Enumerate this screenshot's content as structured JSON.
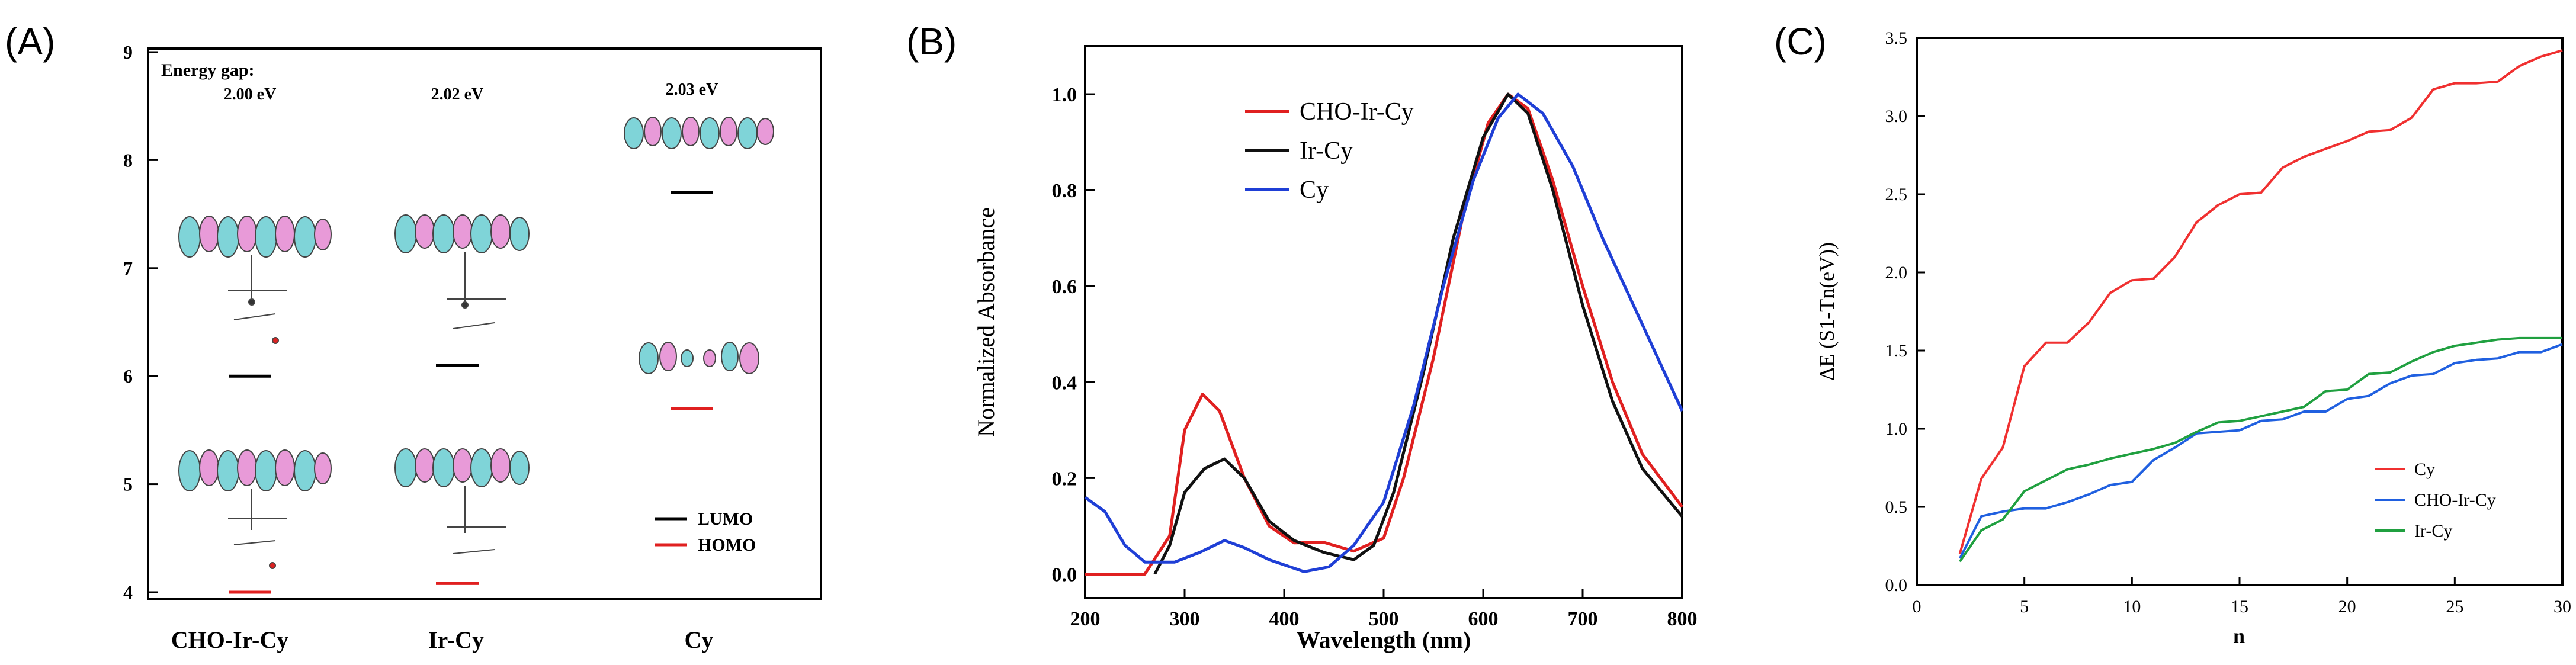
{
  "chart_data": [
    {
      "panel": "(A)",
      "type": "scatter",
      "title": "",
      "ylim": [
        4,
        9
      ],
      "yticks": [
        "4",
        "5",
        "6",
        "7",
        "8",
        "9"
      ],
      "categories": [
        "CHO-Ir-Cy",
        "Ir-Cy",
        "Cy"
      ],
      "energy_gap_heading": "Energy gap:",
      "gaps": [
        "2.00 eV",
        "2.02 eV",
        "2.03 eV"
      ],
      "series": [
        {
          "name": "LUMO",
          "color": "#000000",
          "values": [
            6.0,
            6.1,
            7.7
          ]
        },
        {
          "name": "HOMO",
          "color": "#e02020",
          "values": [
            4.0,
            4.08,
            5.7
          ]
        }
      ],
      "legend": [
        "LUMO",
        "HOMO"
      ],
      "legend_position": "bottom-right"
    },
    {
      "panel": "(B)",
      "type": "line",
      "xlabel": "Wavelength (nm)",
      "ylabel": "Normalized Absorbance",
      "xlim": [
        200,
        800
      ],
      "ylim": [
        -0.05,
        1.1
      ],
      "xticks": [
        "200",
        "300",
        "400",
        "500",
        "600",
        "700",
        "800"
      ],
      "yticks": [
        "0.0",
        "0.2",
        "0.4",
        "0.6",
        "0.8",
        "1.0"
      ],
      "legend_position": "top-left",
      "series": [
        {
          "name": "CHO-Ir-Cy",
          "color": "#e02020",
          "points": [
            [
              200,
              0
            ],
            [
              260,
              0
            ],
            [
              285,
              0.08
            ],
            [
              300,
              0.3
            ],
            [
              318,
              0.375
            ],
            [
              335,
              0.34
            ],
            [
              360,
              0.2
            ],
            [
              385,
              0.1
            ],
            [
              410,
              0.065
            ],
            [
              440,
              0.066
            ],
            [
              470,
              0.048
            ],
            [
              500,
              0.075
            ],
            [
              520,
              0.2
            ],
            [
              550,
              0.45
            ],
            [
              580,
              0.75
            ],
            [
              605,
              0.94
            ],
            [
              625,
              1.0
            ],
            [
              645,
              0.97
            ],
            [
              670,
              0.82
            ],
            [
              700,
              0.6
            ],
            [
              730,
              0.4
            ],
            [
              760,
              0.25
            ],
            [
              800,
              0.14
            ]
          ]
        },
        {
          "name": "Ir-Cy",
          "color": "#111111",
          "points": [
            [
              270,
              0
            ],
            [
              285,
              0.06
            ],
            [
              300,
              0.17
            ],
            [
              320,
              0.22
            ],
            [
              340,
              0.24
            ],
            [
              360,
              0.2
            ],
            [
              385,
              0.11
            ],
            [
              410,
              0.07
            ],
            [
              440,
              0.045
            ],
            [
              470,
              0.03
            ],
            [
              490,
              0.06
            ],
            [
              510,
              0.17
            ],
            [
              540,
              0.42
            ],
            [
              570,
              0.7
            ],
            [
              600,
              0.91
            ],
            [
              625,
              1.0
            ],
            [
              645,
              0.96
            ],
            [
              670,
              0.8
            ],
            [
              700,
              0.56
            ],
            [
              730,
              0.36
            ],
            [
              760,
              0.22
            ],
            [
              800,
              0.12
            ]
          ]
        },
        {
          "name": "Cy",
          "color": "#1f3fd6",
          "points": [
            [
              200,
              0.16
            ],
            [
              220,
              0.13
            ],
            [
              240,
              0.06
            ],
            [
              260,
              0.025
            ],
            [
              290,
              0.025
            ],
            [
              315,
              0.045
            ],
            [
              340,
              0.07
            ],
            [
              360,
              0.055
            ],
            [
              385,
              0.03
            ],
            [
              420,
              0.005
            ],
            [
              445,
              0.015
            ],
            [
              470,
              0.06
            ],
            [
              500,
              0.15
            ],
            [
              530,
              0.35
            ],
            [
              560,
              0.6
            ],
            [
              590,
              0.82
            ],
            [
              615,
              0.95
            ],
            [
              635,
              1.0
            ],
            [
              660,
              0.96
            ],
            [
              690,
              0.85
            ],
            [
              720,
              0.7
            ],
            [
              760,
              0.52
            ],
            [
              800,
              0.34
            ]
          ]
        }
      ]
    },
    {
      "panel": "(C)",
      "type": "line",
      "xlabel": "n",
      "ylabel": "ΔE (S1-Tn(eV))",
      "xlim": [
        0,
        30
      ],
      "ylim": [
        0,
        3.5
      ],
      "xticks": [
        "0",
        "5",
        "10",
        "15",
        "20",
        "25",
        "30"
      ],
      "yticks": [
        "0.0",
        "0.5",
        "1.0",
        "1.5",
        "2.0",
        "2.5",
        "3.0",
        "3.5"
      ],
      "legend_position": "bottom-right",
      "series": [
        {
          "name": "Cy",
          "color": "#f03030",
          "points": [
            [
              2,
              0.2
            ],
            [
              3,
              0.68
            ],
            [
              4,
              0.88
            ],
            [
              5,
              1.4
            ],
            [
              6,
              1.55
            ],
            [
              7,
              1.55
            ],
            [
              8,
              1.68
            ],
            [
              9,
              1.87
            ],
            [
              10,
              1.95
            ],
            [
              11,
              1.96
            ],
            [
              12,
              2.1
            ],
            [
              13,
              2.32
            ],
            [
              14,
              2.43
            ],
            [
              15,
              2.5
            ],
            [
              16,
              2.51
            ],
            [
              17,
              2.67
            ],
            [
              18,
              2.74
            ],
            [
              19,
              2.79
            ],
            [
              20,
              2.84
            ],
            [
              21,
              2.9
            ],
            [
              22,
              2.91
            ],
            [
              23,
              2.99
            ],
            [
              24,
              3.17
            ],
            [
              25,
              3.21
            ],
            [
              26,
              3.21
            ],
            [
              27,
              3.22
            ],
            [
              28,
              3.32
            ],
            [
              29,
              3.38
            ],
            [
              30,
              3.42
            ]
          ]
        },
        {
          "name": "CHO-Ir-Cy",
          "color": "#2060e0",
          "points": [
            [
              2,
              0.17
            ],
            [
              3,
              0.44
            ],
            [
              4,
              0.47
            ],
            [
              5,
              0.49
            ],
            [
              6,
              0.49
            ],
            [
              7,
              0.53
            ],
            [
              8,
              0.58
            ],
            [
              9,
              0.64
            ],
            [
              10,
              0.66
            ],
            [
              11,
              0.8
            ],
            [
              12,
              0.88
            ],
            [
              13,
              0.97
            ],
            [
              14,
              0.98
            ],
            [
              15,
              0.99
            ],
            [
              16,
              1.05
            ],
            [
              17,
              1.06
            ],
            [
              18,
              1.11
            ],
            [
              19,
              1.11
            ],
            [
              20,
              1.19
            ],
            [
              21,
              1.21
            ],
            [
              22,
              1.29
            ],
            [
              23,
              1.34
            ],
            [
              24,
              1.35
            ],
            [
              25,
              1.42
            ],
            [
              26,
              1.44
            ],
            [
              27,
              1.45
            ],
            [
              28,
              1.49
            ],
            [
              29,
              1.49
            ],
            [
              30,
              1.54
            ]
          ]
        },
        {
          "name": "Ir-Cy",
          "color": "#20a040",
          "points": [
            [
              2,
              0.15
            ],
            [
              3,
              0.35
            ],
            [
              4,
              0.42
            ],
            [
              5,
              0.6
            ],
            [
              6,
              0.67
            ],
            [
              7,
              0.74
            ],
            [
              8,
              0.77
            ],
            [
              9,
              0.81
            ],
            [
              10,
              0.84
            ],
            [
              11,
              0.87
            ],
            [
              12,
              0.91
            ],
            [
              13,
              0.98
            ],
            [
              14,
              1.04
            ],
            [
              15,
              1.05
            ],
            [
              16,
              1.08
            ],
            [
              17,
              1.11
            ],
            [
              18,
              1.14
            ],
            [
              19,
              1.24
            ],
            [
              20,
              1.25
            ],
            [
              21,
              1.35
            ],
            [
              22,
              1.36
            ],
            [
              23,
              1.43
            ],
            [
              24,
              1.49
            ],
            [
              25,
              1.53
            ],
            [
              26,
              1.55
            ],
            [
              27,
              1.57
            ],
            [
              28,
              1.58
            ],
            [
              29,
              1.58
            ],
            [
              30,
              1.58
            ]
          ]
        }
      ]
    }
  ]
}
